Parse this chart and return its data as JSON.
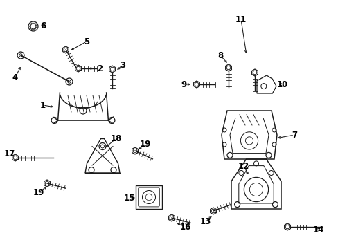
{
  "bg_color": "#ffffff",
  "fig_width": 4.89,
  "fig_height": 3.6,
  "dpi": 100,
  "line_color": "#1a1a1a",
  "label_fontsize": 8.5,
  "parts_lw": 0.9
}
